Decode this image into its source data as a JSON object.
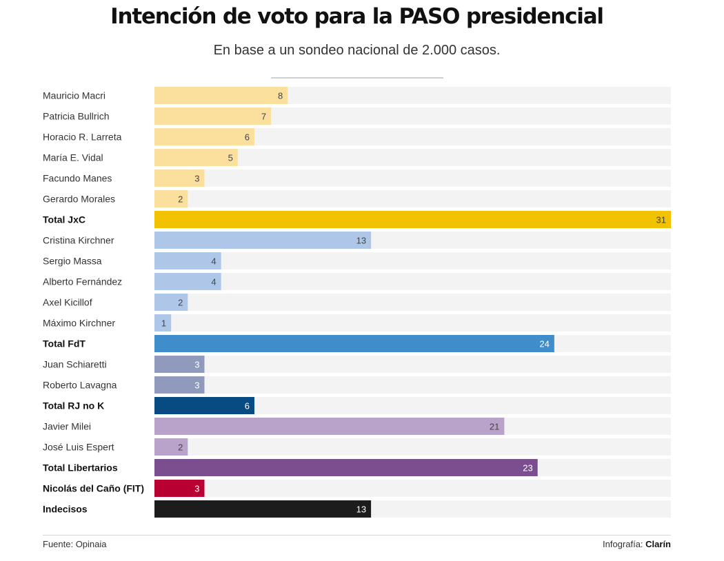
{
  "chart_data": {
    "type": "bar",
    "orientation": "horizontal",
    "title": "Intención de voto para la PASO presidencial",
    "subtitle": "En base a un sondeo nacional de 2.000 casos.",
    "xlabel": "",
    "ylabel": "",
    "xlim": [
      0,
      31
    ],
    "grid": false,
    "legend": "none",
    "categories": [
      "Mauricio Macri",
      "Patricia Bullrich",
      "Horacio R. Larreta",
      "María E. Vidal",
      "Facundo Manes",
      "Gerardo Morales",
      "Total JxC",
      "Cristina Kirchner",
      "Sergio Massa",
      "Alberto Fernández",
      "Axel Kicillof",
      "Máximo Kirchner",
      "Total FdT",
      "Juan Schiaretti",
      "Roberto Lavagna",
      "Total RJ no K",
      "Javier Milei",
      "José Luis Espert",
      "Total Libertarios",
      "Nicolás del Caño (FIT)",
      "Indecisos"
    ],
    "values": [
      8,
      7,
      6,
      5,
      3,
      2,
      31,
      13,
      4,
      4,
      2,
      1,
      24,
      3,
      3,
      6,
      21,
      2,
      23,
      3,
      13
    ],
    "bold": [
      false,
      false,
      false,
      false,
      false,
      false,
      true,
      false,
      false,
      false,
      false,
      false,
      true,
      false,
      false,
      true,
      false,
      false,
      true,
      true,
      true
    ],
    "colors": [
      "#fbe09d",
      "#fbe09d",
      "#fbe09d",
      "#fbe09d",
      "#fbe09d",
      "#fbe09d",
      "#f2c100",
      "#aec6e8",
      "#aec6e8",
      "#aec6e8",
      "#aec6e8",
      "#aec6e8",
      "#3f8dca",
      "#8f9abd",
      "#8f9abd",
      "#084b82",
      "#b9a3ca",
      "#b9a3ca",
      "#7b4f8f",
      "#b80032",
      "#1c1c1c"
    ],
    "value_label_colors": [
      "#444444",
      "#444444",
      "#444444",
      "#444444",
      "#444444",
      "#444444",
      "#444444",
      "#444444",
      "#444444",
      "#444444",
      "#444444",
      "#444444",
      "#ffffff",
      "#ffffff",
      "#ffffff",
      "#ffffff",
      "#444444",
      "#444444",
      "#ffffff",
      "#ffffff",
      "#ffffff"
    ],
    "track_color": "#f3f3f3"
  },
  "footer": {
    "source": "Fuente: Opinaia",
    "credit_prefix": "Infografía: ",
    "credit_brand": "Clarín"
  }
}
